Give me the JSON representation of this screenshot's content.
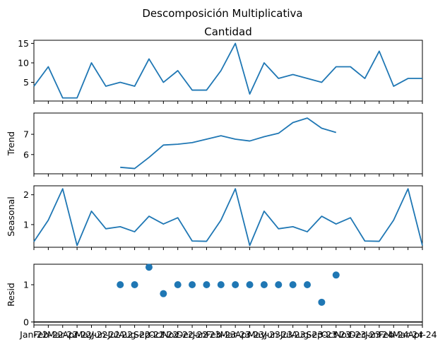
{
  "figure_title": "Descomposición Multiplicativa",
  "colors": {
    "series": "#1f77b4",
    "axis": "#000000",
    "background": "#ffffff"
  },
  "chart_data": [
    {
      "type": "line",
      "title": "Cantidad",
      "ylabel": "",
      "ylim": [
        0.2,
        15.8
      ],
      "yticks": [
        5,
        10,
        15
      ],
      "x": [
        "Jan-22",
        "Feb-22",
        "Mar-22",
        "Apr-22",
        "May-22",
        "Jun-22",
        "Jul-22",
        "Aug-22",
        "Sep-22",
        "Oct-22",
        "Nov-22",
        "Dec-22",
        "Jan-23",
        "Feb-23",
        "Mar-23",
        "Apr-23",
        "May-23",
        "Jun-23",
        "Jul-23",
        "Aug-23",
        "Sep-23",
        "Oct-23",
        "Nov-23",
        "Dec-23",
        "Jan-24",
        "Feb-24",
        "Mar-24",
        "Apr-24"
      ],
      "values": [
        4,
        9,
        1,
        1,
        10,
        4,
        5,
        4,
        11,
        5,
        8,
        3,
        3,
        8,
        15,
        2,
        10,
        6,
        7,
        6,
        5,
        9,
        9,
        6,
        13,
        4,
        6,
        6
      ]
    },
    {
      "type": "line",
      "title": "",
      "ylabel": "Trend",
      "ylim": [
        5.05,
        8.05
      ],
      "yticks": [
        6,
        7
      ],
      "x": [
        "Jan-22",
        "Feb-22",
        "Mar-22",
        "Apr-22",
        "May-22",
        "Jun-22",
        "Jul-22",
        "Aug-22",
        "Sep-22",
        "Oct-22",
        "Nov-22",
        "Dec-22",
        "Jan-23",
        "Feb-23",
        "Mar-23",
        "Apr-23",
        "May-23",
        "Jun-23",
        "Jul-23",
        "Aug-23",
        "Sep-23",
        "Oct-23",
        "Nov-23",
        "Dec-23",
        "Jan-24",
        "Feb-24",
        "Mar-24",
        "Apr-24"
      ],
      "values": [
        null,
        null,
        null,
        null,
        null,
        null,
        5.37,
        5.31,
        5.86,
        6.47,
        6.51,
        6.59,
        6.76,
        6.93,
        6.76,
        6.67,
        6.88,
        7.05,
        7.58,
        7.8,
        7.3,
        7.09,
        null,
        null,
        null,
        null,
        null,
        null
      ]
    },
    {
      "type": "line",
      "title": "",
      "ylabel": "Seasonal",
      "ylim": [
        0.24,
        2.3
      ],
      "yticks": [
        1,
        2
      ],
      "x": [
        "Jan-22",
        "Feb-22",
        "Mar-22",
        "Apr-22",
        "May-22",
        "Jun-22",
        "Jul-22",
        "Aug-22",
        "Sep-22",
        "Oct-22",
        "Nov-22",
        "Dec-22",
        "Jan-23",
        "Feb-23",
        "Mar-23",
        "Apr-23",
        "May-23",
        "Jun-23",
        "Jul-23",
        "Aug-23",
        "Sep-23",
        "Oct-23",
        "Nov-23",
        "Dec-23",
        "Jan-24",
        "Feb-24",
        "Mar-24",
        "Apr-24"
      ],
      "values": [
        0.43,
        1.15,
        2.2,
        0.3,
        1.45,
        0.86,
        0.93,
        0.76,
        1.28,
        1.02,
        1.23,
        0.45,
        0.44,
        1.15,
        2.2,
        0.3,
        1.45,
        0.86,
        0.93,
        0.76,
        1.28,
        1.02,
        1.23,
        0.45,
        0.44,
        1.15,
        2.2,
        0.3
      ]
    },
    {
      "type": "scatter",
      "title": "",
      "ylabel": "Resid",
      "ylim": [
        -0.08,
        1.55
      ],
      "yticks": [
        0,
        1
      ],
      "baseline": 0,
      "x": [
        "Jan-22",
        "Feb-22",
        "Mar-22",
        "Apr-22",
        "May-22",
        "Jun-22",
        "Jul-22",
        "Aug-22",
        "Sep-22",
        "Oct-22",
        "Nov-22",
        "Dec-22",
        "Jan-23",
        "Feb-23",
        "Mar-23",
        "Apr-23",
        "May-23",
        "Jun-23",
        "Jul-23",
        "Aug-23",
        "Sep-23",
        "Oct-23",
        "Nov-23",
        "Dec-23",
        "Jan-24",
        "Feb-24",
        "Mar-24",
        "Apr-24"
      ],
      "values": [
        null,
        null,
        null,
        null,
        null,
        null,
        1.0,
        1.0,
        1.47,
        0.76,
        1.0,
        1.0,
        1.0,
        1.0,
        1.0,
        1.0,
        1.0,
        1.0,
        1.0,
        1.0,
        0.53,
        1.26,
        null,
        null,
        null,
        null,
        null,
        null
      ],
      "xtick_labels": [
        "Jan-22",
        "Feb-22",
        "Mar-22",
        "Apr-22",
        "May-22",
        "Jun-22",
        "Jul-22",
        "Aug-22",
        "Sep-22",
        "Oct-22",
        "Nov-22",
        "Dec-22",
        "Jan-23",
        "Feb-23",
        "Mar-23",
        "Apr-23",
        "May-23",
        "Jun-23",
        "Jul-23",
        "Aug-23",
        "Sep-23",
        "Oct-23",
        "Nov-23",
        "Dec-23",
        "Jan-24",
        "Feb-24",
        "Mar-24",
        "Apr-24"
      ]
    }
  ]
}
